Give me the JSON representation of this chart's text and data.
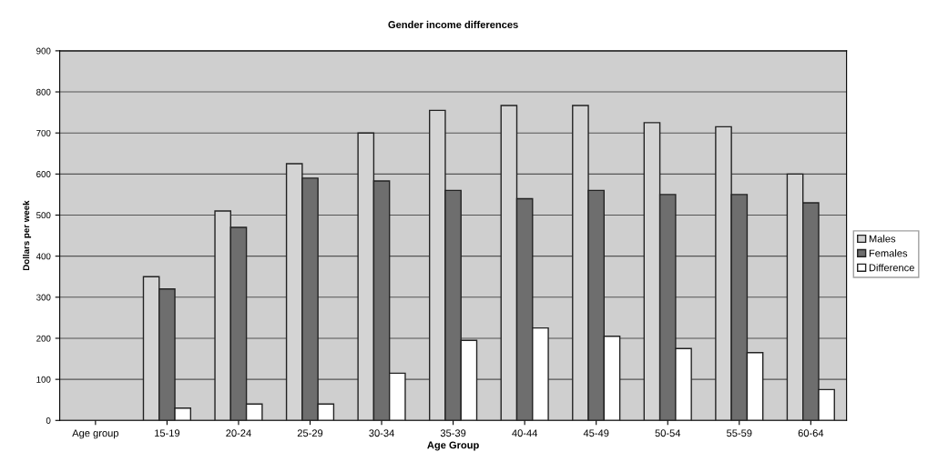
{
  "chart_data": {
    "type": "bar",
    "title": "Gender income differences",
    "xlabel": "Age Group",
    "ylabel": "Dollars per week",
    "categories": [
      "Age group",
      "15-19",
      "20-24",
      "25-29",
      "30-34",
      "35-39",
      "40-44",
      "45-49",
      "50-54",
      "55-59",
      "60-64"
    ],
    "series": [
      {
        "name": "Males",
        "color": "#d4d4d4",
        "values": [
          null,
          350,
          510,
          625,
          700,
          755,
          767,
          767,
          725,
          715,
          600
        ]
      },
      {
        "name": "Females",
        "color": "#6e6e6e",
        "values": [
          null,
          320,
          470,
          590,
          583,
          560,
          540,
          560,
          550,
          550,
          530
        ]
      },
      {
        "name": "Difference",
        "color": "#ffffff",
        "values": [
          null,
          30,
          40,
          40,
          115,
          195,
          225,
          205,
          175,
          165,
          75
        ]
      }
    ],
    "ylim": [
      0,
      900
    ],
    "yticks": [
      0,
      100,
      200,
      300,
      400,
      500,
      600,
      700,
      800,
      900
    ],
    "grid": "y",
    "legend": "right"
  }
}
